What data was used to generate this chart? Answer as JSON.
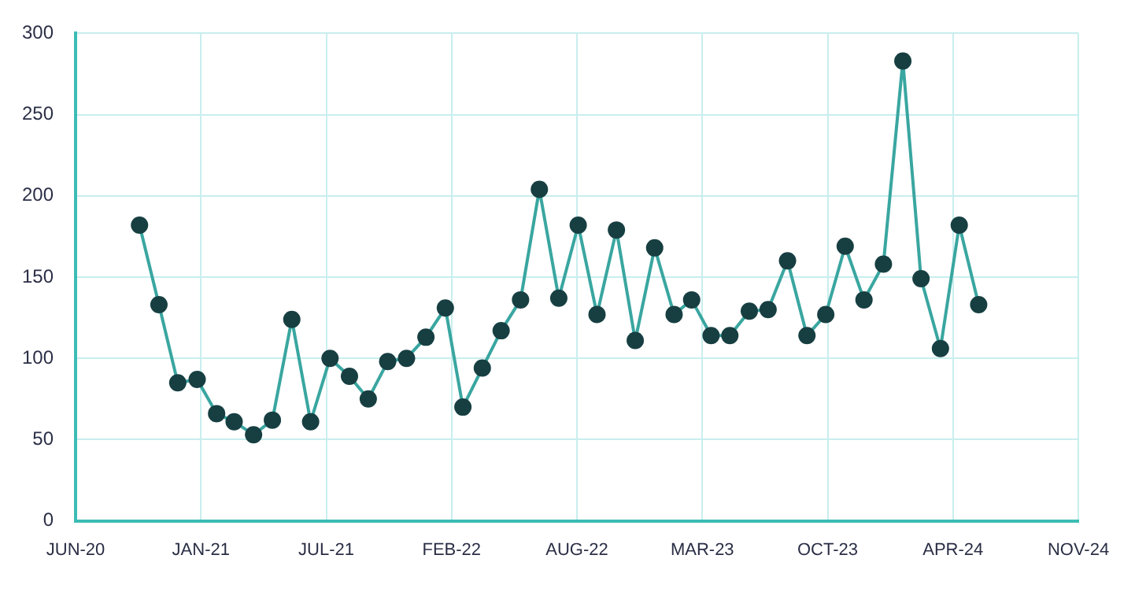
{
  "chart_data": {
    "type": "line",
    "x": [
      "2020-10-01",
      "2020-11-01",
      "2020-12-01",
      "2021-01-01",
      "2021-02-01",
      "2021-03-01",
      "2021-04-01",
      "2021-05-01",
      "2021-06-01",
      "2021-07-01",
      "2021-08-01",
      "2021-09-01",
      "2021-10-01",
      "2021-11-01",
      "2021-12-01",
      "2022-01-01",
      "2022-02-01",
      "2022-03-01",
      "2022-04-01",
      "2022-05-01",
      "2022-06-01",
      "2022-07-01",
      "2022-08-01",
      "2022-09-01",
      "2022-10-01",
      "2022-11-01",
      "2022-12-01",
      "2023-01-01",
      "2023-02-01",
      "2023-03-01",
      "2023-04-01",
      "2023-05-01",
      "2023-06-01",
      "2023-07-01",
      "2023-08-01",
      "2023-09-01",
      "2023-10-01",
      "2023-11-01",
      "2023-12-01",
      "2024-01-01",
      "2024-02-01",
      "2024-03-01",
      "2024-04-01",
      "2024-05-01",
      "2024-06-01"
    ],
    "series": [
      {
        "color": "#3aa6a0",
        "values": [
          182,
          133,
          85,
          87,
          66,
          61,
          53,
          62,
          124,
          61,
          100,
          89,
          75,
          98,
          100,
          113,
          131,
          70,
          94,
          117,
          136,
          204,
          137,
          182,
          127,
          179,
          111,
          168,
          127,
          136,
          114,
          114,
          129,
          130,
          160,
          114,
          127,
          169,
          136,
          158,
          283,
          149,
          106,
          182,
          133
        ]
      }
    ],
    "xlim": [
      "2020-06-21",
      "2024-11-07"
    ],
    "xticks": [
      {
        "value": "2020-06-21",
        "label": "JUN-20"
      },
      {
        "value": "2021-01-07",
        "label": "JAN-21"
      },
      {
        "value": "2021-07-26",
        "label": "JUL-21"
      },
      {
        "value": "2022-02-11",
        "label": "FEB-22"
      },
      {
        "value": "2022-08-30",
        "label": "AUG-22"
      },
      {
        "value": "2023-03-18",
        "label": "MAR-23"
      },
      {
        "value": "2023-10-04",
        "label": "OCT-23"
      },
      {
        "value": "2024-04-21",
        "label": "APR-24"
      },
      {
        "value": "2024-11-07",
        "label": "NOV-24"
      }
    ],
    "ylim": [
      0,
      300
    ],
    "yticks": [
      0,
      50,
      100,
      150,
      200,
      250,
      300
    ],
    "grid": true,
    "marker": "circle",
    "line_style": "solid"
  }
}
